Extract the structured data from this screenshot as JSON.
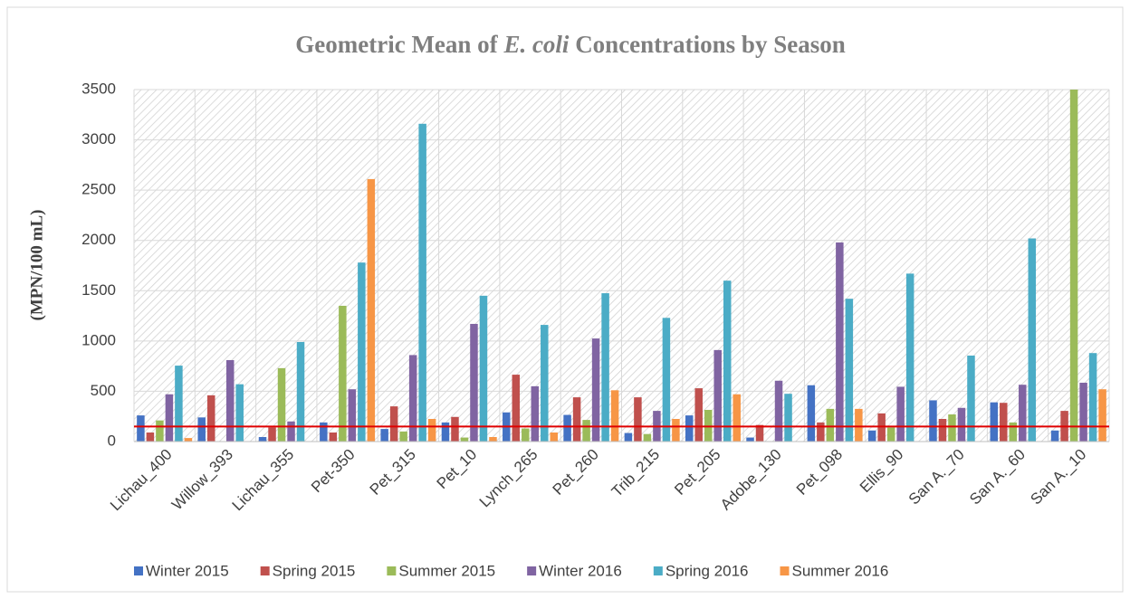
{
  "chart_data": {
    "type": "bar",
    "title_parts": [
      "Geometric Mean of ",
      "E. coli",
      " Concentrations by Season"
    ],
    "y_label": "(MPN/100 mL)",
    "categories": [
      "Lichau_400",
      "Willow_393",
      "Lichau_355",
      "Pet-350",
      "Pet_315",
      "Pet_10",
      "Lynch_265",
      "Pet_260",
      "Trib_215",
      "Pet_205",
      "Adobe_130",
      "Pet_098",
      "Ellis_90",
      "San A._70",
      "San A._60",
      "San A._10"
    ],
    "series": [
      {
        "name": "Winter 2015",
        "color": "#4472c4",
        "values": [
          260,
          240,
          45,
          190,
          125,
          190,
          290,
          265,
          85,
          260,
          40,
          560,
          110,
          410,
          390,
          110
        ]
      },
      {
        "name": "Spring 2015",
        "color": "#c0504d",
        "values": [
          90,
          460,
          140,
          90,
          350,
          245,
          665,
          440,
          440,
          530,
          165,
          190,
          280,
          225,
          385,
          305
        ]
      },
      {
        "name": "Summer 2015",
        "color": "#9bbb59",
        "values": [
          210,
          null,
          730,
          1350,
          100,
          40,
          130,
          215,
          75,
          315,
          null,
          325,
          140,
          270,
          190,
          3500
        ]
      },
      {
        "name": "Winter 2016",
        "color": "#8064a2",
        "values": [
          470,
          810,
          200,
          520,
          860,
          1170,
          550,
          1025,
          305,
          910,
          605,
          1980,
          545,
          335,
          565,
          585
        ]
      },
      {
        "name": "Spring 2016",
        "color": "#4bacc6",
        "values": [
          755,
          570,
          990,
          1780,
          3160,
          1450,
          1160,
          1475,
          1230,
          1600,
          475,
          1420,
          1670,
          855,
          2020,
          880
        ]
      },
      {
        "name": "Summer 2016",
        "color": "#f79646",
        "values": [
          35,
          null,
          null,
          2610,
          225,
          45,
          90,
          510,
          225,
          470,
          null,
          325,
          null,
          null,
          null,
          520
        ]
      }
    ],
    "reference_line": {
      "value": 150,
      "color": "#e00000"
    },
    "ylim": [
      0,
      3500
    ],
    "yticks": [
      0,
      500,
      1000,
      1500,
      2000,
      2500,
      3000,
      3500
    ],
    "grid": true,
    "legend": "bottom"
  }
}
